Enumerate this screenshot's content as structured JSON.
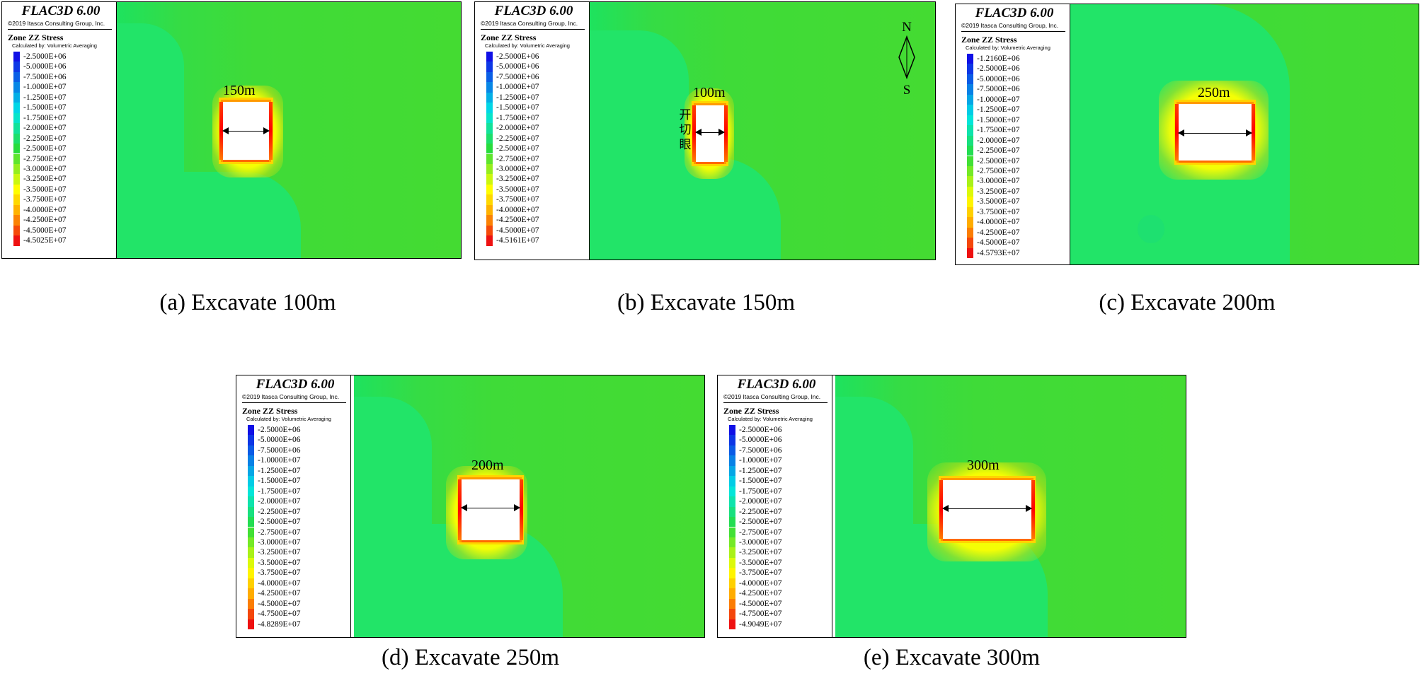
{
  "legend_common": {
    "brand": "FLAC3D 6.00",
    "copyright": "©2019 Itasca Consulting Group, Inc.",
    "title": "Zone ZZ Stress",
    "calc": "Calculated by: Volumetric Averaging"
  },
  "colors": {
    "blue": "#1010e6",
    "cyan": "#00e6e6",
    "green": "#33dd33",
    "yellow": "#ffff00",
    "orange": "#ffa500",
    "red": "#ee1111"
  },
  "panels": [
    {
      "caption": "(a) Excavate 100m",
      "dimension": "150m",
      "legend": [
        "-2.5000E+06",
        "-5.0000E+06",
        "-7.5000E+06",
        "-1.0000E+07",
        "-1.2500E+07",
        "-1.5000E+07",
        "-1.7500E+07",
        "-2.0000E+07",
        "-2.2500E+07",
        "-2.5000E+07",
        "-2.7500E+07",
        "-3.0000E+07",
        "-3.2500E+07",
        "-3.5000E+07",
        "-3.7500E+07",
        "-4.0000E+07",
        "-4.2500E+07",
        "-4.5000E+07",
        "-4.5025E+07"
      ]
    },
    {
      "caption": "(b) Excavate 150m",
      "dimension": "100m",
      "vertical_label": [
        "开",
        "切",
        "眼"
      ],
      "compass": {
        "north": "N",
        "south": "S"
      },
      "legend": [
        "-2.5000E+06",
        "-5.0000E+06",
        "-7.5000E+06",
        "-1.0000E+07",
        "-1.2500E+07",
        "-1.5000E+07",
        "-1.7500E+07",
        "-2.0000E+07",
        "-2.2500E+07",
        "-2.5000E+07",
        "-2.7500E+07",
        "-3.0000E+07",
        "-3.2500E+07",
        "-3.5000E+07",
        "-3.7500E+07",
        "-4.0000E+07",
        "-4.2500E+07",
        "-4.5000E+07",
        "-4.5161E+07"
      ]
    },
    {
      "caption": "(c) Excavate 200m",
      "dimension": "250m",
      "legend": [
        "-1.2160E+06",
        "-2.5000E+06",
        "-5.0000E+06",
        "-7.5000E+06",
        "-1.0000E+07",
        "-1.2500E+07",
        "-1.5000E+07",
        "-1.7500E+07",
        "-2.0000E+07",
        "-2.2500E+07",
        "-2.5000E+07",
        "-2.7500E+07",
        "-3.0000E+07",
        "-3.2500E+07",
        "-3.5000E+07",
        "-3.7500E+07",
        "-4.0000E+07",
        "-4.2500E+07",
        "-4.5000E+07",
        "-4.5793E+07"
      ]
    },
    {
      "caption": "(d) Excavate 250m",
      "dimension": "200m",
      "legend": [
        "-2.5000E+06",
        "-5.0000E+06",
        "-7.5000E+06",
        "-1.0000E+07",
        "-1.2500E+07",
        "-1.5000E+07",
        "-1.7500E+07",
        "-2.0000E+07",
        "-2.2500E+07",
        "-2.5000E+07",
        "-2.7500E+07",
        "-3.0000E+07",
        "-3.2500E+07",
        "-3.5000E+07",
        "-3.7500E+07",
        "-4.0000E+07",
        "-4.2500E+07",
        "-4.5000E+07",
        "-4.7500E+07",
        "-4.8289E+07"
      ]
    },
    {
      "caption": "(e) Excavate 300m",
      "dimension": "300m",
      "legend": [
        "-2.5000E+06",
        "-5.0000E+06",
        "-7.5000E+06",
        "-1.0000E+07",
        "-1.2500E+07",
        "-1.5000E+07",
        "-1.7500E+07",
        "-2.0000E+07",
        "-2.2500E+07",
        "-2.5000E+07",
        "-2.7500E+07",
        "-3.0000E+07",
        "-3.2500E+07",
        "-3.5000E+07",
        "-3.7500E+07",
        "-4.0000E+07",
        "-4.2500E+07",
        "-4.5000E+07",
        "-4.7500E+07",
        "-4.9049E+07"
      ]
    }
  ]
}
